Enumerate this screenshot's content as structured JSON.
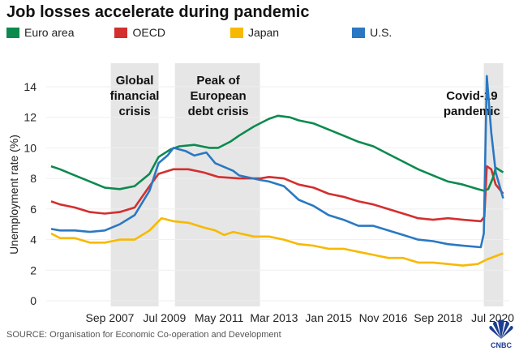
{
  "title": "Job losses accelerate during pandemic",
  "source": "SOURCE: Organisation for Economic Co-operation and Development",
  "logo_text": "CNBC",
  "chart_data": {
    "type": "line",
    "title": "Job losses accelerate during pandemic",
    "xlabel": "",
    "ylabel": "Unemployment rate (%)",
    "ylim": [
      0,
      15
    ],
    "xlim": [
      2005.6,
      2021.0
    ],
    "yticks": [
      0,
      2,
      4,
      6,
      8,
      10,
      12,
      14
    ],
    "xticks": [
      {
        "label": "Sep 2007",
        "x": 2007.67
      },
      {
        "label": "Jul 2009",
        "x": 2009.5
      },
      {
        "label": "May 2011",
        "x": 2011.33
      },
      {
        "label": "Mar 2013",
        "x": 2013.17
      },
      {
        "label": "Jan 2015",
        "x": 2015.0
      },
      {
        "label": "Nov 2016",
        "x": 2016.83
      },
      {
        "label": "Sep 2018",
        "x": 2018.67
      },
      {
        "label": "Jul 2020",
        "x": 2020.5
      }
    ],
    "legend_position": "top-left",
    "shaded_periods": [
      {
        "label": [
          "Global",
          "financial",
          "crisis"
        ],
        "start": 2007.7,
        "end": 2009.3
      },
      {
        "label": [
          "Peak of",
          "European",
          "debt crisis"
        ],
        "start": 2009.85,
        "end": 2012.7
      },
      {
        "label": [
          "Covid-19",
          "pandemic"
        ],
        "start": 2020.2,
        "end": 2020.85
      }
    ],
    "series": [
      {
        "name": "Euro area",
        "color": "#0b8a4e",
        "points": [
          [
            2005.7,
            8.8
          ],
          [
            2006,
            8.6
          ],
          [
            2006.5,
            8.2
          ],
          [
            2007,
            7.8
          ],
          [
            2007.5,
            7.4
          ],
          [
            2008,
            7.3
          ],
          [
            2008.5,
            7.5
          ],
          [
            2009,
            8.3
          ],
          [
            2009.3,
            9.4
          ],
          [
            2009.7,
            9.9
          ],
          [
            2010,
            10.1
          ],
          [
            2010.5,
            10.2
          ],
          [
            2011,
            10.0
          ],
          [
            2011.3,
            10.0
          ],
          [
            2011.7,
            10.4
          ],
          [
            2012,
            10.8
          ],
          [
            2012.5,
            11.4
          ],
          [
            2013,
            11.9
          ],
          [
            2013.3,
            12.1
          ],
          [
            2013.7,
            12.0
          ],
          [
            2014,
            11.8
          ],
          [
            2014.5,
            11.6
          ],
          [
            2015,
            11.2
          ],
          [
            2015.5,
            10.8
          ],
          [
            2016,
            10.4
          ],
          [
            2016.5,
            10.1
          ],
          [
            2017,
            9.6
          ],
          [
            2017.5,
            9.1
          ],
          [
            2018,
            8.6
          ],
          [
            2018.5,
            8.2
          ],
          [
            2019,
            7.8
          ],
          [
            2019.5,
            7.6
          ],
          [
            2020,
            7.3
          ],
          [
            2020.2,
            7.2
          ],
          [
            2020.35,
            7.3
          ],
          [
            2020.5,
            8.0
          ],
          [
            2020.6,
            8.7
          ],
          [
            2020.85,
            8.4
          ]
        ]
      },
      {
        "name": "OECD",
        "color": "#d32f2f",
        "points": [
          [
            2005.7,
            6.5
          ],
          [
            2006,
            6.3
          ],
          [
            2006.5,
            6.1
          ],
          [
            2007,
            5.8
          ],
          [
            2007.5,
            5.7
          ],
          [
            2008,
            5.8
          ],
          [
            2008.5,
            6.1
          ],
          [
            2009,
            7.5
          ],
          [
            2009.3,
            8.3
          ],
          [
            2009.8,
            8.6
          ],
          [
            2010.3,
            8.6
          ],
          [
            2010.8,
            8.4
          ],
          [
            2011.3,
            8.1
          ],
          [
            2012,
            8.0
          ],
          [
            2012.7,
            8.0
          ],
          [
            2013,
            8.1
          ],
          [
            2013.5,
            8.0
          ],
          [
            2014,
            7.6
          ],
          [
            2014.5,
            7.4
          ],
          [
            2015,
            7.0
          ],
          [
            2015.5,
            6.8
          ],
          [
            2016,
            6.5
          ],
          [
            2016.5,
            6.3
          ],
          [
            2017,
            6.0
          ],
          [
            2017.5,
            5.7
          ],
          [
            2018,
            5.4
          ],
          [
            2018.5,
            5.3
          ],
          [
            2019,
            5.4
          ],
          [
            2019.5,
            5.3
          ],
          [
            2020.1,
            5.2
          ],
          [
            2020.22,
            5.5
          ],
          [
            2020.3,
            8.8
          ],
          [
            2020.45,
            8.6
          ],
          [
            2020.6,
            7.6
          ],
          [
            2020.85,
            7.0
          ]
        ]
      },
      {
        "name": "Japan",
        "color": "#f7b900",
        "points": [
          [
            2005.7,
            4.4
          ],
          [
            2006,
            4.1
          ],
          [
            2006.5,
            4.1
          ],
          [
            2007,
            3.8
          ],
          [
            2007.5,
            3.8
          ],
          [
            2008,
            4.0
          ],
          [
            2008.5,
            4.0
          ],
          [
            2009,
            4.6
          ],
          [
            2009.4,
            5.4
          ],
          [
            2009.8,
            5.2
          ],
          [
            2010.3,
            5.1
          ],
          [
            2010.8,
            4.8
          ],
          [
            2011.2,
            4.6
          ],
          [
            2011.5,
            4.3
          ],
          [
            2011.8,
            4.5
          ],
          [
            2012.5,
            4.2
          ],
          [
            2013,
            4.2
          ],
          [
            2013.5,
            4.0
          ],
          [
            2014,
            3.7
          ],
          [
            2014.5,
            3.6
          ],
          [
            2015,
            3.4
          ],
          [
            2015.5,
            3.4
          ],
          [
            2016,
            3.2
          ],
          [
            2016.5,
            3.0
          ],
          [
            2017,
            2.8
          ],
          [
            2017.5,
            2.8
          ],
          [
            2018,
            2.5
          ],
          [
            2018.5,
            2.5
          ],
          [
            2019,
            2.4
          ],
          [
            2019.5,
            2.3
          ],
          [
            2020,
            2.4
          ],
          [
            2020.3,
            2.7
          ],
          [
            2020.85,
            3.1
          ]
        ]
      },
      {
        "name": "U.S.",
        "color": "#2a78c2",
        "points": [
          [
            2005.7,
            4.7
          ],
          [
            2006,
            4.6
          ],
          [
            2006.5,
            4.6
          ],
          [
            2007,
            4.5
          ],
          [
            2007.5,
            4.6
          ],
          [
            2008,
            5.0
          ],
          [
            2008.5,
            5.6
          ],
          [
            2009,
            7.2
          ],
          [
            2009.3,
            9.0
          ],
          [
            2009.6,
            9.5
          ],
          [
            2009.8,
            10.0
          ],
          [
            2010.2,
            9.8
          ],
          [
            2010.5,
            9.5
          ],
          [
            2010.9,
            9.7
          ],
          [
            2011.2,
            9.0
          ],
          [
            2011.8,
            8.5
          ],
          [
            2012,
            8.2
          ],
          [
            2012.7,
            7.9
          ],
          [
            2013,
            7.8
          ],
          [
            2013.5,
            7.5
          ],
          [
            2014,
            6.6
          ],
          [
            2014.5,
            6.2
          ],
          [
            2015,
            5.6
          ],
          [
            2015.5,
            5.3
          ],
          [
            2016,
            4.9
          ],
          [
            2016.5,
            4.9
          ],
          [
            2017,
            4.6
          ],
          [
            2017.5,
            4.3
          ],
          [
            2018,
            4.0
          ],
          [
            2018.5,
            3.9
          ],
          [
            2019,
            3.7
          ],
          [
            2019.5,
            3.6
          ],
          [
            2020.1,
            3.5
          ],
          [
            2020.2,
            4.4
          ],
          [
            2020.3,
            14.7
          ],
          [
            2020.45,
            11.0
          ],
          [
            2020.6,
            8.4
          ],
          [
            2020.85,
            6.7
          ]
        ]
      }
    ]
  }
}
